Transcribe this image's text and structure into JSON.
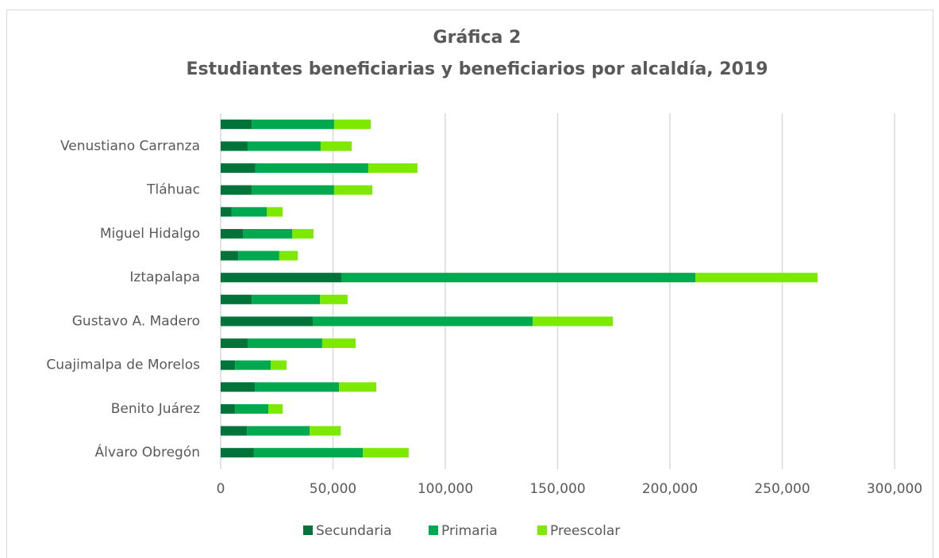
{
  "chart_data": {
    "type": "stacked-bar-horizontal",
    "title": "Gráfica 2",
    "subtitle": "Estudiantes beneficiarias y beneficiarios por alcaldía, 2019",
    "categories": [
      "Álvaro Obregón",
      null,
      "Benito Juárez",
      null,
      "Cuajimalpa de Morelos",
      null,
      "Gustavo A. Madero",
      null,
      "Iztapalapa",
      null,
      "Miguel Hidalgo",
      null,
      "Tláhuac",
      null,
      "Venustiano Carranza",
      null
    ],
    "series": [
      {
        "name": "Secundaria",
        "color": "#00733a",
        "values": [
          14800,
          11700,
          6400,
          15200,
          6400,
          12000,
          41000,
          13800,
          53700,
          7800,
          9900,
          4900,
          13800,
          15500,
          12000,
          13800
        ]
      },
      {
        "name": "Primaria",
        "color": "#00a94f",
        "values": [
          48500,
          27900,
          14800,
          37500,
          15900,
          33200,
          97900,
          30400,
          157600,
          18300,
          21900,
          15600,
          36700,
          50200,
          32500,
          36700
        ]
      },
      {
        "name": "Preescolar",
        "color": "#7de800",
        "values": [
          20400,
          13800,
          6400,
          16600,
          7000,
          14900,
          35700,
          12300,
          54400,
          8200,
          9500,
          7100,
          17000,
          21900,
          13800,
          16300
        ]
      }
    ],
    "xlim": [
      0,
      300000
    ],
    "xticks": [
      0,
      {
        "value": 50000,
        "label": "50,000"
      },
      {
        "value": 100000,
        "label": "100,000"
      },
      {
        "value": 150000,
        "label": "150,000"
      },
      {
        "value": 200000,
        "label": "200,000"
      },
      {
        "value": 250000,
        "label": "250,000"
      },
      {
        "value": 300000,
        "label": "300,000"
      }
    ],
    "grid": true,
    "legend": "bottom"
  }
}
